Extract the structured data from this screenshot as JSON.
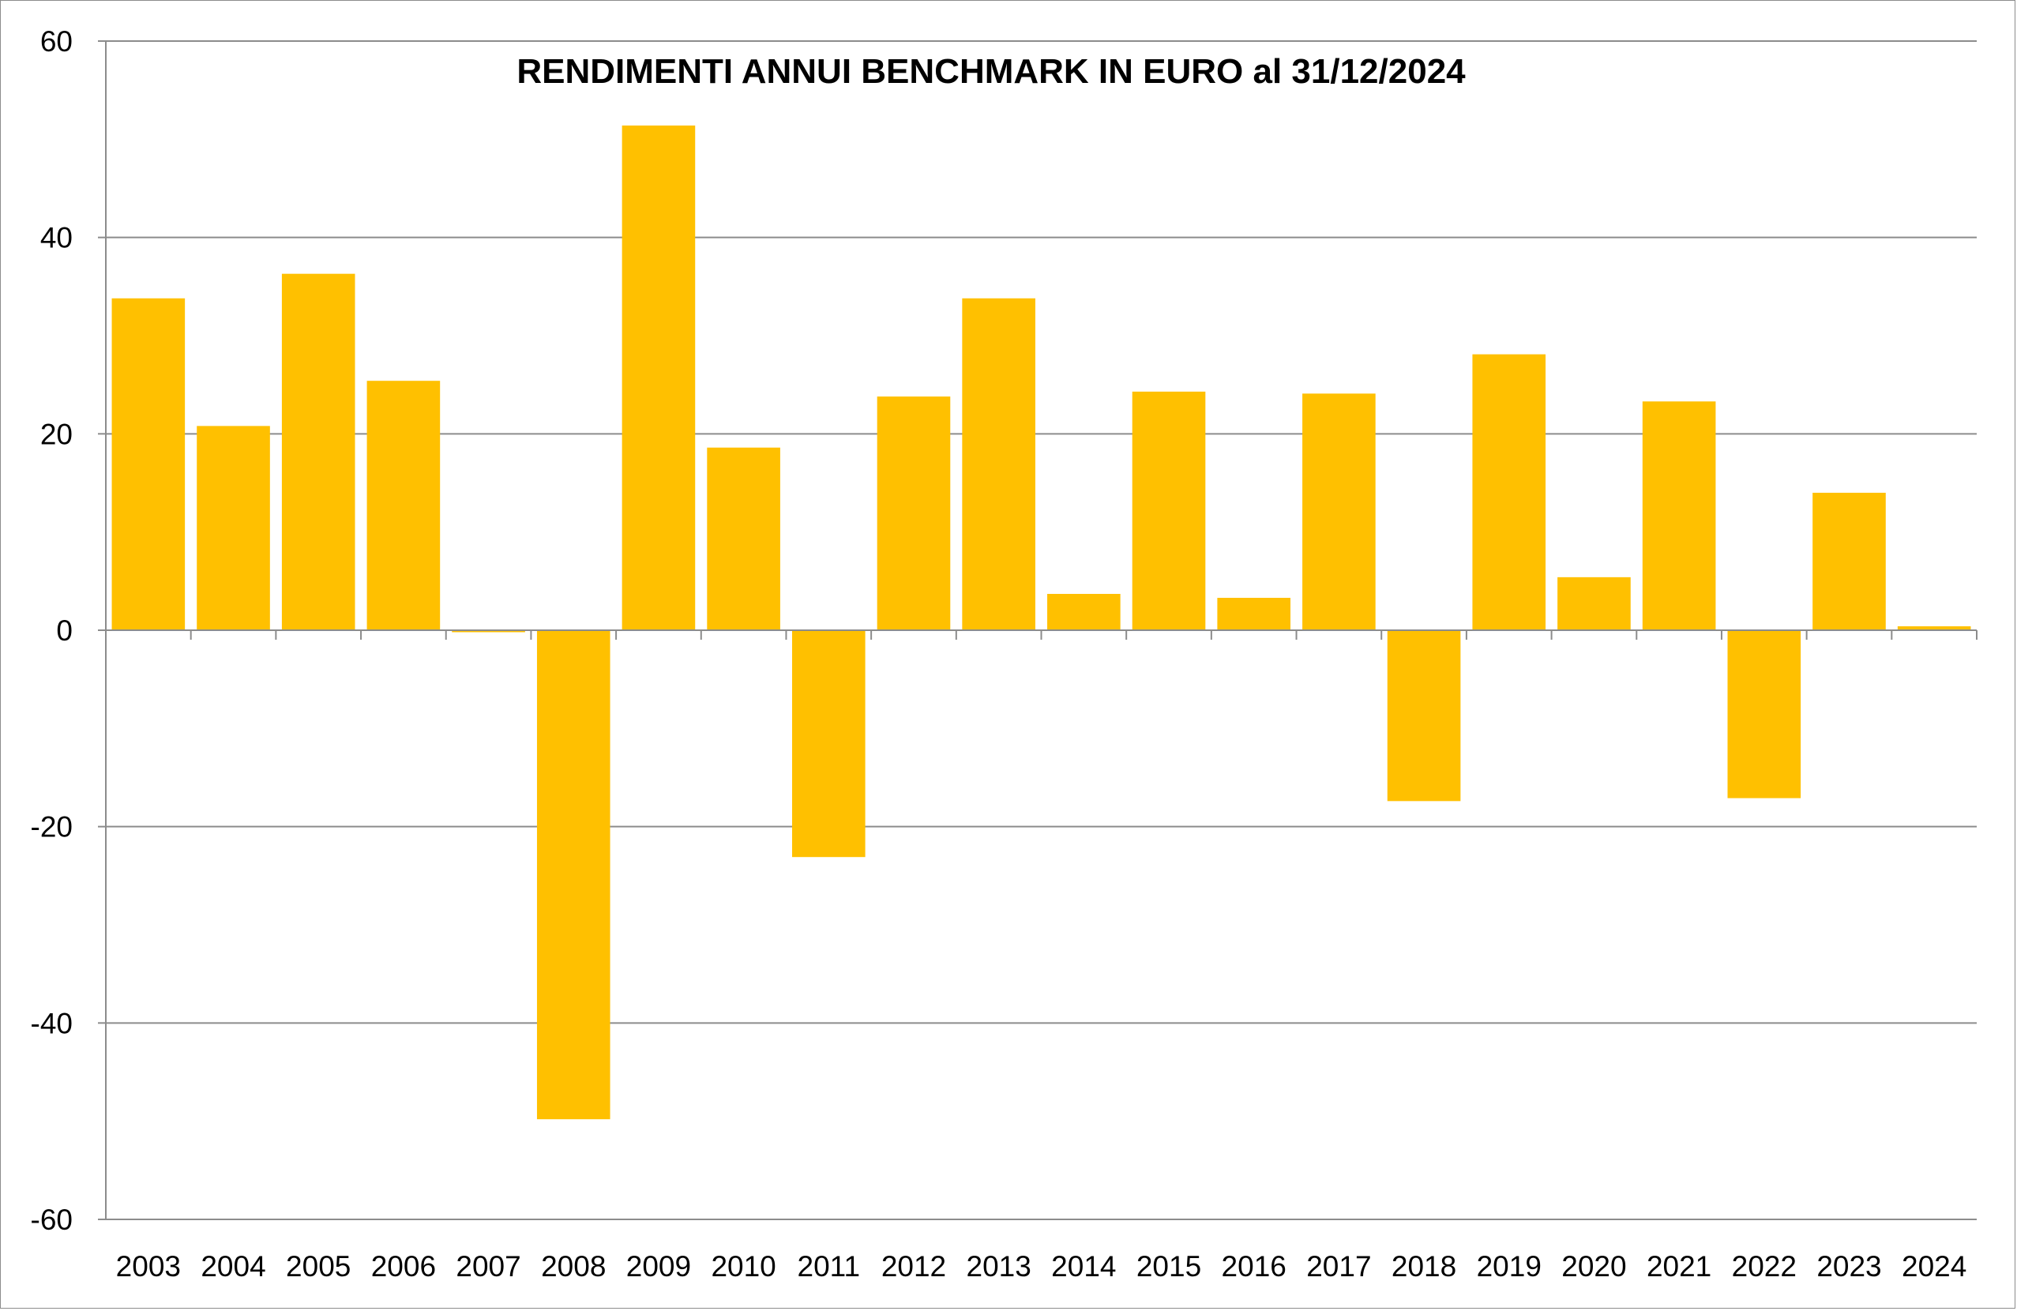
{
  "chart_data": {
    "type": "bar",
    "title": "RENDIMENTI ANNUI BENCHMARK IN EURO al 31/12/2024",
    "xlabel": "",
    "ylabel": "",
    "categories": [
      "2003",
      "2004",
      "2005",
      "2006",
      "2007",
      "2008",
      "2009",
      "2010",
      "2011",
      "2012",
      "2013",
      "2014",
      "2015",
      "2016",
      "2017",
      "2018",
      "2019",
      "2020",
      "2021",
      "2022",
      "2023",
      "2024"
    ],
    "values": [
      33.8,
      20.8,
      36.3,
      25.4,
      -0.2,
      -49.8,
      51.4,
      18.6,
      -23.1,
      23.8,
      33.8,
      3.7,
      24.3,
      3.3,
      24.1,
      -17.4,
      28.1,
      5.4,
      23.3,
      -17.1,
      14.0,
      0.4
    ],
    "ylim": [
      -60,
      60
    ],
    "yticks": [
      "60",
      "40",
      "20",
      "0",
      "-20",
      "-40",
      "-60"
    ],
    "ytick_values": [
      60,
      40,
      20,
      0,
      -20,
      -40,
      -60
    ],
    "grid": true,
    "legend": "none",
    "colors": {
      "bar": "#FFC000",
      "grid": "#8c8c8c",
      "axis": "#8c8c8c",
      "text": "#000000"
    }
  }
}
